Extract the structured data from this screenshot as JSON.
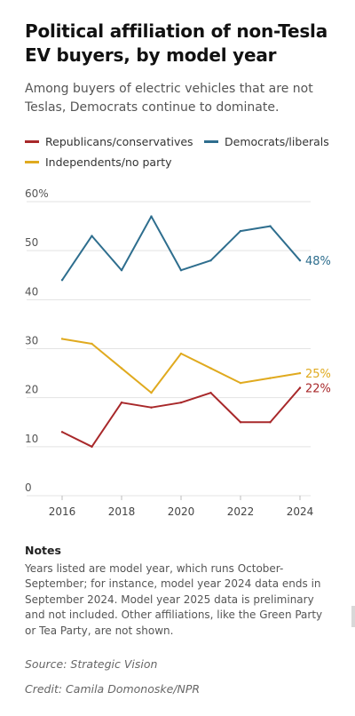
{
  "header": {
    "title": "Political affiliation of non-Tesla EV buyers, by model year",
    "subtitle": "Among buyers of electric vehicles that are not Teslas, Democrats continue to dominate."
  },
  "legend": {
    "republicans": "Republicans/conservatives",
    "democrats": "Democrats/liberals",
    "independents": "Independents/no party"
  },
  "chart_data": {
    "type": "line",
    "x": [
      2016,
      2017,
      2018,
      2019,
      2020,
      2021,
      2022,
      2023,
      2024
    ],
    "x_ticks": [
      2016,
      2018,
      2020,
      2022,
      2024
    ],
    "y_ticks": [
      0,
      10,
      20,
      30,
      40,
      50,
      60
    ],
    "y_tick_labels": [
      "0",
      "10",
      "20",
      "30",
      "40",
      "50",
      "60%"
    ],
    "ylim": [
      0,
      60
    ],
    "xlim": [
      2016,
      2024
    ],
    "grid": true,
    "legend_position": "top",
    "series": [
      {
        "name": "Democrats/liberals",
        "color": "#2e6e8e",
        "values": [
          44,
          53,
          46,
          57,
          46,
          48,
          54,
          55,
          48
        ],
        "end_label": "48%"
      },
      {
        "name": "Independents/no party",
        "color": "#e0aa1f",
        "values": [
          32,
          31,
          26,
          21,
          29,
          26,
          23,
          24,
          25
        ],
        "end_label": "25%"
      },
      {
        "name": "Republicans/conservatives",
        "color": "#a8282a",
        "values": [
          13,
          10,
          19,
          18,
          19,
          21,
          15,
          15,
          22
        ],
        "end_label": "22%"
      }
    ]
  },
  "notes": {
    "heading": "Notes",
    "body": "Years listed are model year, which runs October-September; for instance, model year 2024 data ends in September 2024. Model year 2025 data is preliminary and not included. Other affiliations, like the Green Party or Tea Party, are not shown."
  },
  "footer": {
    "source": "Source: Strategic Vision",
    "credit": "Credit: Camila Domonoske/NPR"
  }
}
